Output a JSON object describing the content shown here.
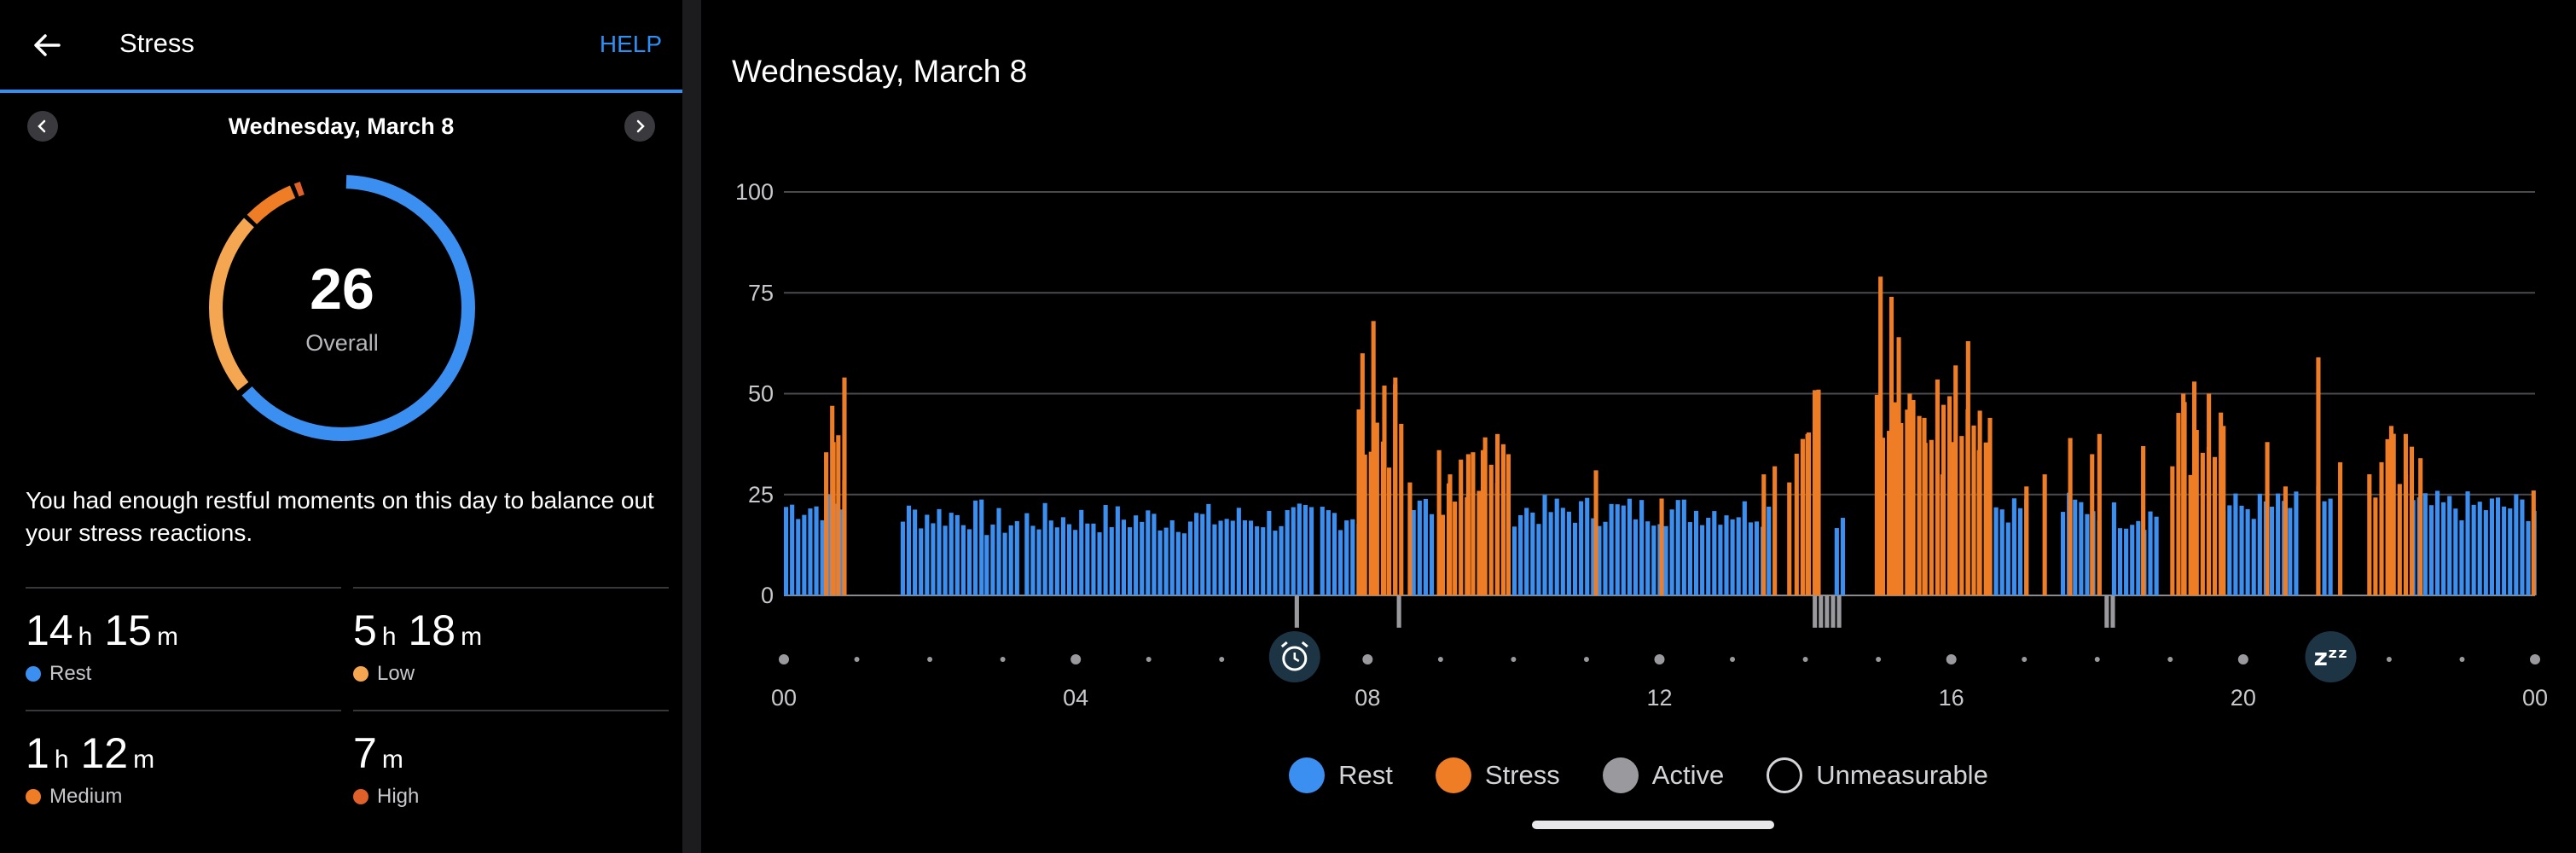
{
  "left": {
    "title": "Stress",
    "help_label": "HELP",
    "date": "Wednesday, March 8",
    "score": "26",
    "score_label": "Overall",
    "message": "You had enough restful moments on this day to balance out your stress reactions.",
    "stats": [
      {
        "h": "14",
        "m": "15",
        "label": "Rest",
        "color": "#3b8ff0"
      },
      {
        "h": "5",
        "m": "18",
        "label": "Low",
        "color": "#f5a650"
      },
      {
        "h": "1",
        "m": "12",
        "label": "Medium",
        "color": "#ee7d26"
      },
      {
        "h": "",
        "m": "7",
        "label": "High",
        "color": "#e0602a"
      }
    ]
  },
  "units": {
    "h": "h",
    "m": "m"
  },
  "colors": {
    "rest": "#3b8ff0",
    "stress": "#ee7d26",
    "active": "#9a9a9e",
    "low": "#f5a650",
    "accent": "#2f8ff3"
  },
  "right": {
    "title": "Wednesday, March 8",
    "legend": [
      {
        "label": "Rest",
        "color": "#3b8ff0"
      },
      {
        "label": "Stress",
        "color": "#ee7d26"
      },
      {
        "label": "Active",
        "color": "#9a9a9e"
      },
      {
        "label": "Unmeasurable",
        "color": "none"
      }
    ],
    "alarm_icon": "alarm-clock-icon",
    "sleep_icon": "sleep-zzz-icon",
    "sleep_text": "zᶻᶻ"
  },
  "chart_data": {
    "type": "bar",
    "ylim": [
      0,
      100
    ],
    "yticks": [
      0,
      25,
      50,
      75,
      100
    ],
    "xlim": [
      0,
      24
    ],
    "xticks": [
      "00",
      "04",
      "08",
      "12",
      "16",
      "20",
      "00"
    ],
    "alarm_hour": 7,
    "sleep_hour": 21.2,
    "series": [
      {
        "name": "Rest",
        "color": "#3b8ff0",
        "segments": [
          {
            "from": 0.0,
            "to": 0.75,
            "level": 22
          },
          {
            "from": 1.6,
            "to": 2.7,
            "level": 20
          },
          {
            "from": 2.75,
            "to": 3.2,
            "level": 18
          },
          {
            "from": 3.3,
            "to": 7.25,
            "level": 19
          },
          {
            "from": 7.35,
            "to": 7.9,
            "level": 20
          },
          {
            "from": 8.6,
            "to": 8.9,
            "level": 22
          },
          {
            "from": 9.9,
            "to": 13.5,
            "level": 21
          },
          {
            "from": 14.4,
            "to": 14.5,
            "level": 20
          },
          {
            "from": 16.5,
            "to": 17.0,
            "level": 22
          },
          {
            "from": 17.5,
            "to": 18.0,
            "level": 22
          },
          {
            "from": 18.2,
            "to": 18.8,
            "level": 20
          },
          {
            "from": 19.7,
            "to": 20.7,
            "level": 22
          },
          {
            "from": 21.0,
            "to": 21.2,
            "level": 24
          },
          {
            "from": 22.3,
            "to": 24.0,
            "level": 22
          }
        ]
      },
      {
        "name": "Stress",
        "color": "#ee7d26",
        "spikes": [
          [
            0.65,
            38
          ],
          [
            0.8,
            54
          ],
          [
            7.9,
            60
          ],
          [
            8.05,
            68
          ],
          [
            8.2,
            52
          ],
          [
            8.35,
            54
          ],
          [
            8.55,
            28
          ],
          [
            8.95,
            36
          ],
          [
            9.1,
            30
          ],
          [
            9.35,
            35
          ],
          [
            9.55,
            36
          ],
          [
            9.75,
            40
          ],
          [
            9.9,
            35
          ],
          [
            11.1,
            31
          ],
          [
            12.0,
            24
          ],
          [
            13.4,
            30
          ],
          [
            13.55,
            32
          ],
          [
            13.75,
            28
          ],
          [
            14.0,
            40
          ],
          [
            14.1,
            50
          ],
          [
            14.15,
            51
          ],
          [
            15.0,
            79
          ],
          [
            15.15,
            74
          ],
          [
            15.25,
            64
          ],
          [
            15.4,
            50
          ],
          [
            15.6,
            44
          ],
          [
            15.85,
            30
          ],
          [
            16.0,
            38
          ],
          [
            16.2,
            63
          ],
          [
            16.35,
            36
          ],
          [
            16.5,
            44
          ],
          [
            17.0,
            27
          ],
          [
            17.25,
            30
          ],
          [
            17.6,
            39
          ],
          [
            17.9,
            35
          ],
          [
            18.0,
            40
          ],
          [
            18.6,
            37
          ],
          [
            19.15,
            50
          ],
          [
            19.3,
            53
          ],
          [
            19.5,
            50
          ],
          [
            19.7,
            42
          ],
          [
            20.3,
            38
          ],
          [
            20.55,
            27
          ],
          [
            21.0,
            59
          ],
          [
            21.3,
            33
          ],
          [
            22.0,
            42
          ],
          [
            22.2,
            30
          ],
          [
            22.4,
            34
          ],
          [
            23.95,
            26
          ]
        ],
        "blocks": [
          {
            "from": 0.55,
            "to": 0.85,
            "level": 34
          },
          {
            "from": 7.85,
            "to": 8.5,
            "level": 40
          },
          {
            "from": 9.0,
            "to": 9.9,
            "level": 28
          },
          {
            "from": 13.85,
            "to": 14.15,
            "level": 40
          },
          {
            "from": 14.95,
            "to": 16.5,
            "level": 46
          },
          {
            "from": 19.0,
            "to": 19.7,
            "level": 38
          },
          {
            "from": 21.7,
            "to": 22.3,
            "level": 28
          }
        ]
      },
      {
        "name": "Active",
        "color": "#9a9a9e",
        "segments": [
          {
            "from": 7.0,
            "to": 7.05,
            "level": -8
          },
          {
            "from": 8.4,
            "to": 8.45,
            "level": -8
          },
          {
            "from": 14.1,
            "to": 14.5,
            "level": -8
          },
          {
            "from": 18.1,
            "to": 18.2,
            "level": -8
          }
        ]
      }
    ]
  }
}
